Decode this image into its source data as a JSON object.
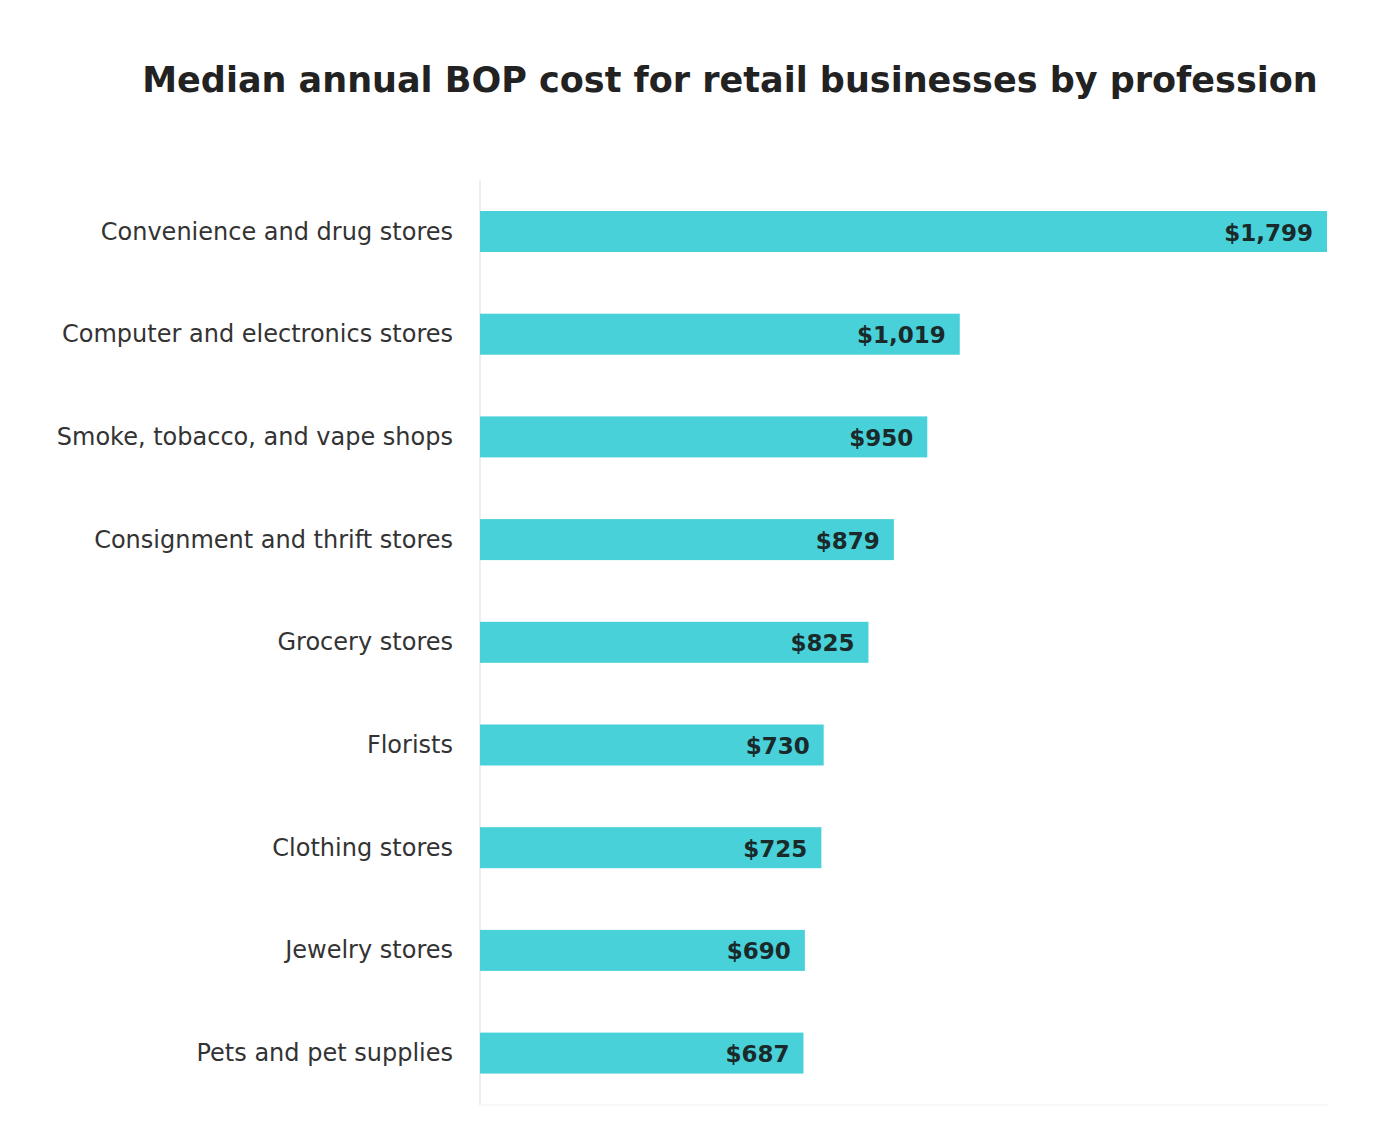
{
  "chart_data": {
    "type": "bar",
    "orientation": "horizontal",
    "title": "Median annual BOP cost for retail businesses by profession",
    "categories": [
      "Convenience and drug stores",
      "Computer and electronics stores",
      "Smoke, tobacco, and vape shops",
      "Consignment and thrift stores",
      "Grocery stores",
      "Florists",
      "Clothing stores",
      "Jewelry stores",
      "Pets and pet supplies"
    ],
    "values": [
      1799,
      1019,
      950,
      879,
      825,
      730,
      725,
      690,
      687
    ],
    "value_labels": [
      "$1,799",
      "$1,019",
      "$950",
      "$879",
      "$825",
      "$730",
      "$725",
      "$690",
      "$687"
    ],
    "color": "#48d1d9",
    "xlim": [
      0,
      1800
    ],
    "grid": false,
    "data_labels": true,
    "tick_labels": "y"
  }
}
